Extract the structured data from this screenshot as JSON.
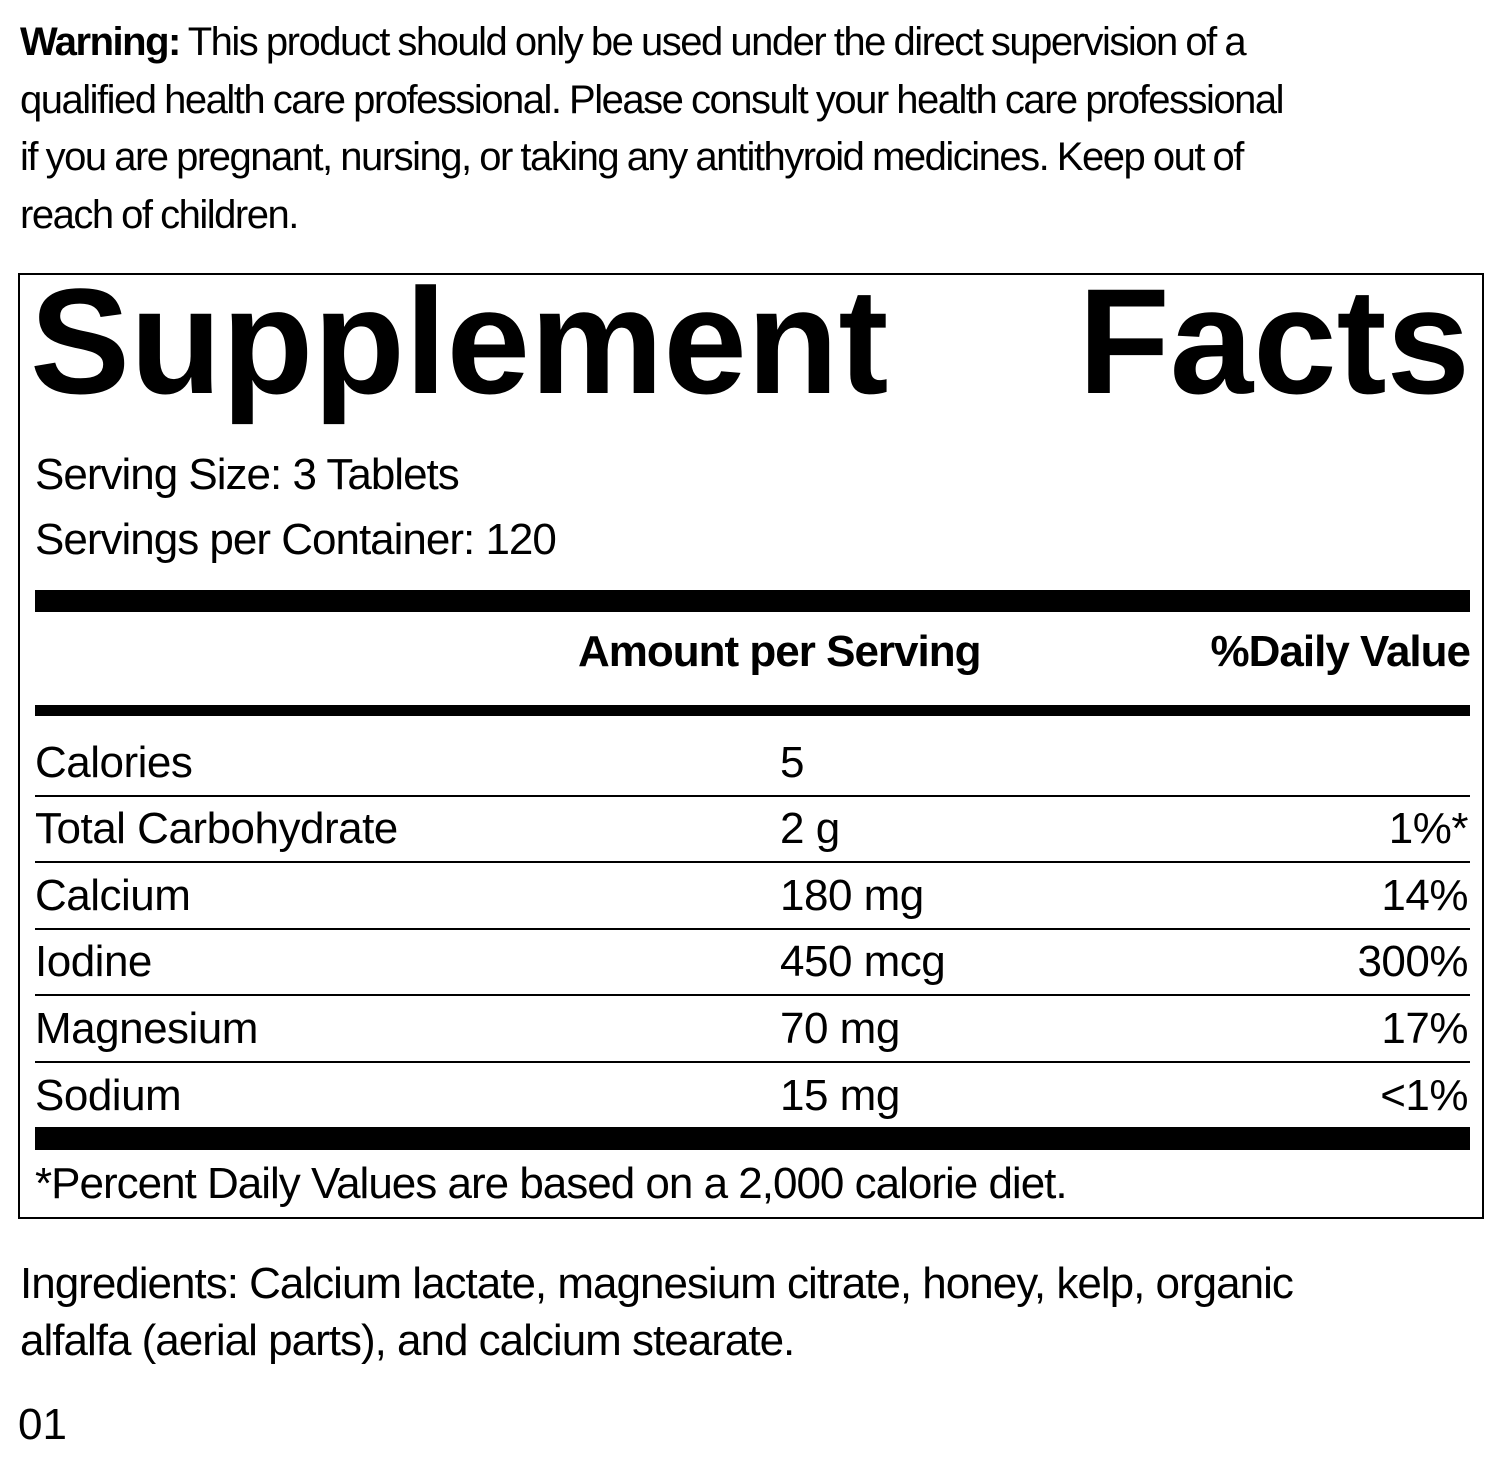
{
  "warning": {
    "label": "Warning:",
    "lines": [
      " This product should only be used under the direct supervision of a",
      "qualified health care professional. Please consult your health care professional",
      "if you are pregnant, nursing, or taking any antithyroid medicines. Keep out of",
      "reach of children."
    ]
  },
  "facts": {
    "title_left": "Supplement",
    "title_right": "Facts",
    "serving_size": "Serving Size: 3 Tablets",
    "servings_per_container": "Servings per Container: 120",
    "header_amount": "Amount per Serving",
    "header_dv": "%Daily Value",
    "rows": [
      {
        "name": "Calories",
        "amount": "5",
        "dv": ""
      },
      {
        "name": "Total Carbohydrate",
        "amount": "2 g",
        "dv": "1%*"
      },
      {
        "name": "Calcium",
        "amount": "180 mg",
        "dv": "14%"
      },
      {
        "name": "Iodine",
        "amount": "450 mcg",
        "dv": "300%"
      },
      {
        "name": "Magnesium",
        "amount": "70 mg",
        "dv": "17%"
      },
      {
        "name": "Sodium",
        "amount": "15 mg",
        "dv": "<1%"
      }
    ],
    "footnote": "*Percent Daily Values are based on a 2,000 calorie diet."
  },
  "ingredients": [
    "Ingredients: Calcium lactate, magnesium citrate, honey, kelp, organic",
    "alfalfa (aerial parts), and calcium stearate."
  ],
  "lot_code": "01"
}
